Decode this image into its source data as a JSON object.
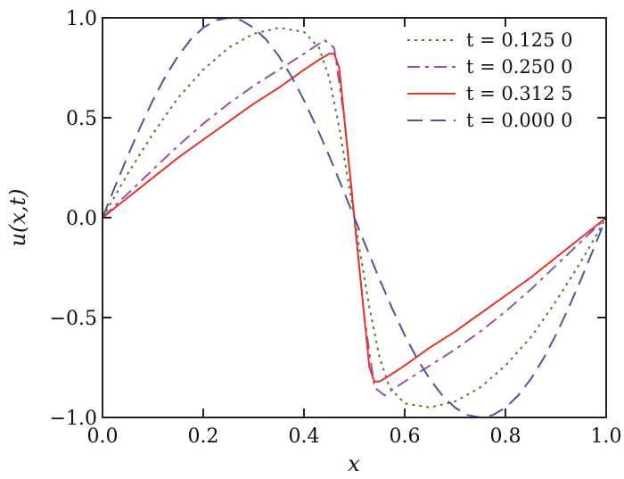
{
  "chart_data": {
    "type": "line",
    "title": "",
    "xlabel": "x",
    "ylabel": "u(x,t)",
    "xlim": [
      0,
      1
    ],
    "ylim": [
      -1,
      1
    ],
    "grid": false,
    "legend_placement": "top-right",
    "xticks": [
      "0.0",
      "0.2",
      "0.4",
      "0.6",
      "0.8",
      "1.0"
    ],
    "yticks": [
      "1.0",
      "0.5",
      "0.0",
      "−0.5",
      "−1.0"
    ],
    "xtick_values": [
      0,
      0.2,
      0.4,
      0.6,
      0.8,
      1.0
    ],
    "ytick_values": [
      1,
      0.5,
      0,
      -0.5,
      -1
    ],
    "series": [
      {
        "name": "t = 0.125 0",
        "color": "#4f7d33",
        "dash": "dotted",
        "x": [
          0,
          0.05,
          0.1,
          0.15,
          0.2,
          0.25,
          0.3,
          0.35,
          0.4,
          0.43,
          0.45,
          0.47,
          0.49,
          0.5,
          0.51,
          0.53,
          0.55,
          0.57,
          0.6,
          0.65,
          0.7,
          0.75,
          0.8,
          0.85,
          0.9,
          0.95,
          1
        ],
        "y": [
          0,
          0.22,
          0.42,
          0.6,
          0.74,
          0.85,
          0.92,
          0.95,
          0.93,
          0.85,
          0.7,
          0.45,
          0.15,
          0,
          -0.15,
          -0.45,
          -0.7,
          -0.85,
          -0.93,
          -0.95,
          -0.92,
          -0.85,
          -0.74,
          -0.6,
          -0.42,
          -0.22,
          0
        ]
      },
      {
        "name": "t = 0.250 0",
        "color": "#9b4fab",
        "dash": "dash-dot",
        "x": [
          0,
          0.05,
          0.1,
          0.15,
          0.2,
          0.25,
          0.3,
          0.35,
          0.4,
          0.43,
          0.44,
          0.46,
          0.48,
          0.49,
          0.5,
          0.51,
          0.52,
          0.54,
          0.56,
          0.57,
          0.6,
          0.65,
          0.7,
          0.75,
          0.8,
          0.85,
          0.9,
          0.95,
          1
        ],
        "y": [
          0,
          0.12,
          0.24,
          0.36,
          0.47,
          0.57,
          0.66,
          0.74,
          0.82,
          0.87,
          0.89,
          0.85,
          0.5,
          0.25,
          0,
          -0.25,
          -0.5,
          -0.85,
          -0.89,
          -0.87,
          -0.82,
          -0.74,
          -0.66,
          -0.57,
          -0.47,
          -0.36,
          -0.24,
          -0.12,
          0
        ]
      },
      {
        "name": "t = 0.312 5",
        "color": "#ea3328",
        "dash": "solid",
        "x": [
          0,
          0.05,
          0.1,
          0.15,
          0.2,
          0.25,
          0.3,
          0.35,
          0.4,
          0.43,
          0.45,
          0.46,
          0.47,
          0.48,
          0.49,
          0.5,
          0.51,
          0.52,
          0.53,
          0.54,
          0.55,
          0.57,
          0.6,
          0.65,
          0.7,
          0.75,
          0.8,
          0.85,
          0.9,
          0.95,
          1
        ],
        "y": [
          0,
          0.1,
          0.2,
          0.3,
          0.39,
          0.48,
          0.57,
          0.65,
          0.74,
          0.79,
          0.82,
          0.82,
          0.75,
          0.5,
          0.25,
          0,
          -0.25,
          -0.5,
          -0.75,
          -0.82,
          -0.82,
          -0.79,
          -0.74,
          -0.65,
          -0.57,
          -0.48,
          -0.39,
          -0.3,
          -0.2,
          -0.1,
          0
        ]
      },
      {
        "name": "t = 0.000 0",
        "color": "#4a55a2",
        "dash": "dashed",
        "x": [
          0,
          0.025,
          0.05,
          0.075,
          0.1,
          0.125,
          0.15,
          0.175,
          0.2,
          0.225,
          0.25,
          0.275,
          0.3,
          0.325,
          0.35,
          0.375,
          0.4,
          0.425,
          0.45,
          0.475,
          0.5,
          0.525,
          0.55,
          0.575,
          0.6,
          0.625,
          0.65,
          0.675,
          0.7,
          0.725,
          0.75,
          0.775,
          0.8,
          0.825,
          0.85,
          0.875,
          0.9,
          0.925,
          0.95,
          0.975,
          1
        ],
        "y": [
          0,
          0.156,
          0.309,
          0.454,
          0.588,
          0.707,
          0.809,
          0.891,
          0.951,
          0.988,
          1,
          0.988,
          0.951,
          0.891,
          0.809,
          0.707,
          0.588,
          0.454,
          0.309,
          0.156,
          0,
          -0.156,
          -0.309,
          -0.454,
          -0.588,
          -0.707,
          -0.809,
          -0.891,
          -0.951,
          -0.988,
          -1,
          -0.988,
          -0.951,
          -0.891,
          -0.809,
          -0.707,
          -0.588,
          -0.454,
          -0.309,
          -0.156,
          0
        ]
      }
    ]
  }
}
